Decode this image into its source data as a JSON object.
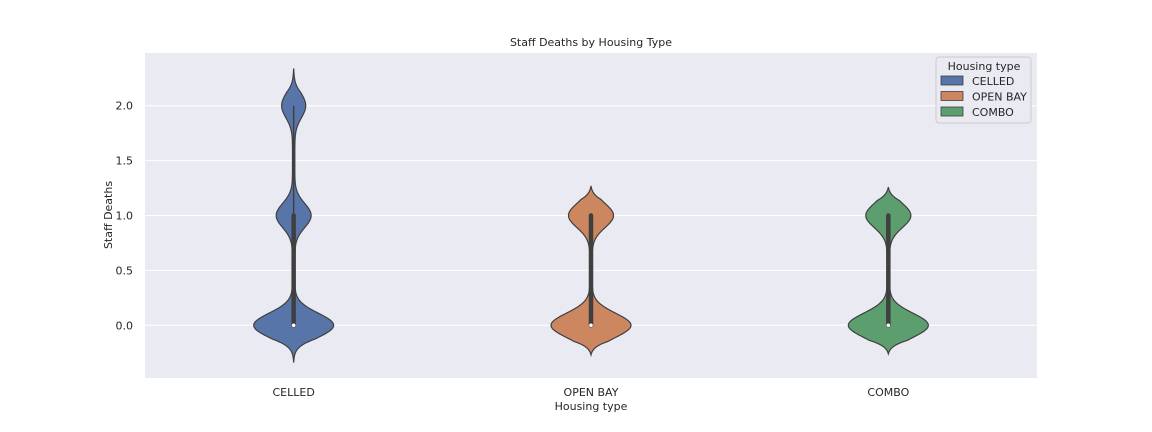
{
  "chart_data": {
    "type": "violin",
    "title": "Staff Deaths by Housing Type",
    "xlabel": "Housing type",
    "ylabel": "Staff Deaths",
    "categories": [
      "CELLED",
      "OPEN BAY",
      "COMBO"
    ],
    "ylim": [
      -0.48,
      2.48
    ],
    "yticks": [
      0.0,
      0.5,
      1.0,
      1.5,
      2.0
    ],
    "ytick_labels": [
      "0.0",
      "0.5",
      "1.0",
      "1.5",
      "2.0"
    ],
    "grid": true,
    "legend": {
      "title": "Housing type",
      "position": "top-right",
      "entries": [
        "CELLED",
        "OPEN BAY",
        "COMBO"
      ]
    },
    "series": [
      {
        "category": "CELLED",
        "color": "#5875a9",
        "support": [
          -0.34,
          2.34
        ],
        "modes": [
          0,
          1,
          2
        ],
        "median": 0,
        "q1": 0,
        "q3": 1,
        "whisker_low": 0,
        "whisker_high": 2
      },
      {
        "category": "OPEN BAY",
        "color": "#cc8660",
        "support": [
          -0.27,
          1.27
        ],
        "modes": [
          0,
          1
        ],
        "median": 0,
        "q1": 0,
        "q3": 1,
        "whisker_low": 0,
        "whisker_high": 1
      },
      {
        "category": "COMBO",
        "color": "#5c9e6d",
        "support": [
          -0.26,
          1.26
        ],
        "modes": [
          0,
          1
        ],
        "median": 0,
        "q1": 0,
        "q3": 1,
        "whisker_low": 0,
        "whisker_high": 1
      }
    ]
  }
}
